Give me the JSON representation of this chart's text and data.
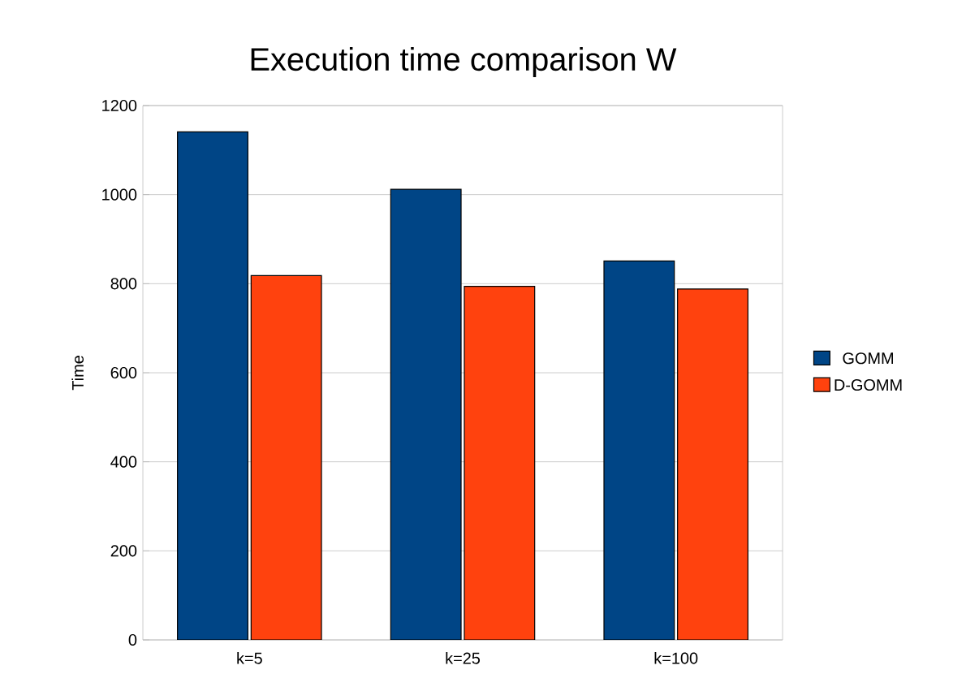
{
  "chart_data": {
    "type": "bar",
    "title": "Execution time comparison W",
    "ylabel": "Time",
    "categories": [
      "k=5",
      "k=25",
      "k=100"
    ],
    "series": [
      {
        "name": "GOMM",
        "color": "#004586",
        "values": [
          1141,
          1012,
          851
        ]
      },
      {
        "name": "D-GOMM",
        "color": "#ff420e",
        "values": [
          818,
          794,
          788
        ]
      }
    ],
    "ylim": [
      0,
      1200
    ],
    "yticks": [
      0,
      200,
      400,
      600,
      800,
      1000,
      1200
    ],
    "grid": "y",
    "legend": "right"
  }
}
